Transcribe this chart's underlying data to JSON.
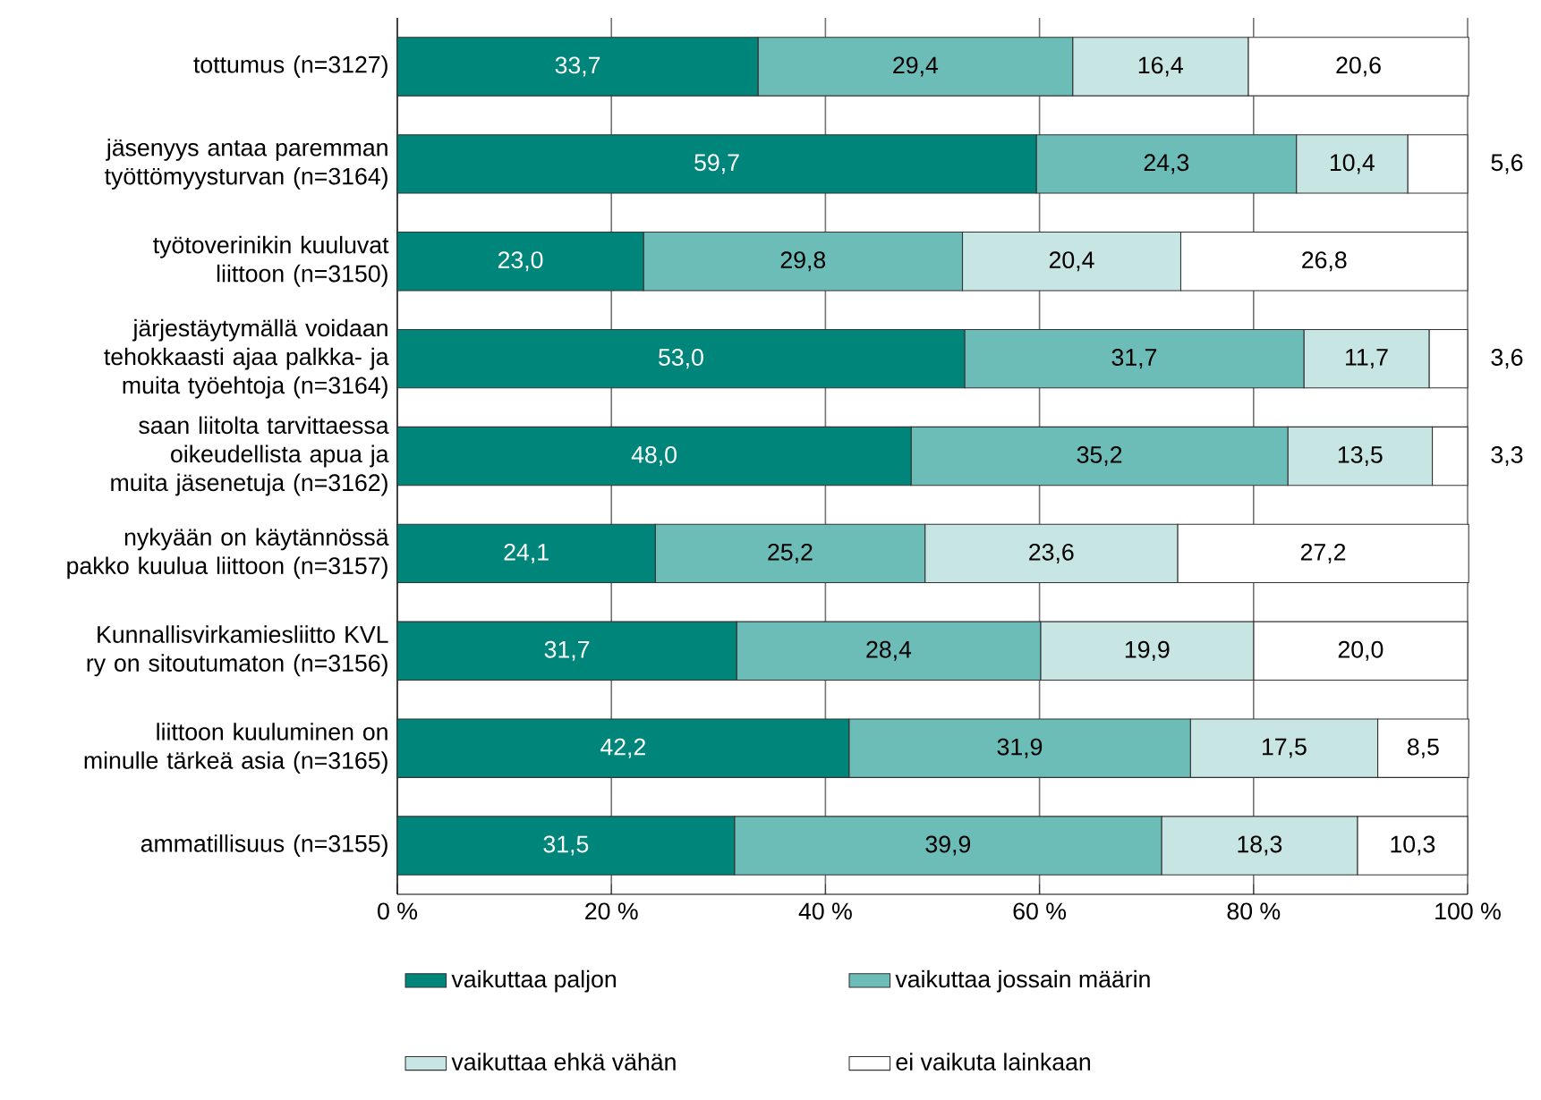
{
  "chart_data": {
    "type": "bar",
    "orientation": "horizontal",
    "stacked": true,
    "categories": [
      "tottumus (n=3127)",
      "jäsenyys antaa paremman työttömyysturvan (n=3164)",
      "työtoverinikin kuuluvat liittoon (n=3150)",
      "järjestäytymällä voidaan tehokkaasti ajaa palkka- ja muita työehtoja (n=3164)",
      "saan liitolta tarvittaessa oikeudellista apua ja muita jäsenetuja (n=3162)",
      "nykyään on käytännössä pakko kuulua liittoon (n=3157)",
      "Kunnallisvirkamiesliitto KVL ry on sitoutumaton (n=3156)",
      "liittoon kuuluminen on minulle tärkeä asia (n=3165)",
      "ammatillisuus (n=3155)"
    ],
    "series": [
      {
        "name": "vaikuttaa paljon",
        "color": "#00857a",
        "values": [
          33.7,
          59.7,
          23.0,
          53.0,
          48.0,
          24.1,
          31.7,
          42.2,
          31.5
        ],
        "value_labels": [
          "33,7",
          "59,7",
          "23,0",
          "53,0",
          "48,0",
          "24,1",
          "31,7",
          "42,2",
          "31,5"
        ]
      },
      {
        "name": "vaikuttaa jossain määrin",
        "color": "#6cbcb8",
        "values": [
          29.4,
          24.3,
          29.8,
          31.7,
          35.2,
          25.2,
          28.4,
          31.9,
          39.9
        ],
        "value_labels": [
          "29,4",
          "24,3",
          "29,8",
          "31,7",
          "35,2",
          "25,2",
          "28,4",
          "31,9",
          "39,9"
        ]
      },
      {
        "name": "vaikuttaa ehkä vähän",
        "color": "#c6e5e3",
        "values": [
          16.4,
          10.4,
          20.4,
          11.7,
          13.5,
          23.6,
          19.9,
          17.5,
          18.3
        ],
        "value_labels": [
          "16,4",
          "10,4",
          "20,4",
          "11,7",
          "13,5",
          "23,6",
          "19,9",
          "17,5",
          "18,3"
        ]
      },
      {
        "name": "ei vaikuta lainkaan",
        "color": "#ffffff",
        "values": [
          20.6,
          5.6,
          26.8,
          3.6,
          3.3,
          27.2,
          20.0,
          8.5,
          10.3
        ],
        "value_labels": [
          "20,6",
          "5,6",
          "26,8",
          "3,6",
          "3,3",
          "27,2",
          "20,0",
          "8,5",
          "10,3"
        ]
      }
    ],
    "xlim": [
      0,
      100
    ],
    "xticks": [
      {
        "value": 0,
        "label": "0 %"
      },
      {
        "value": 20,
        "label": "20 %"
      },
      {
        "value": 40,
        "label": "40 %"
      },
      {
        "value": 60,
        "label": "60 %"
      },
      {
        "value": 80,
        "label": "80 %"
      },
      {
        "value": 100,
        "label": "100 %"
      }
    ],
    "grid": "x",
    "legend": "bottom"
  }
}
